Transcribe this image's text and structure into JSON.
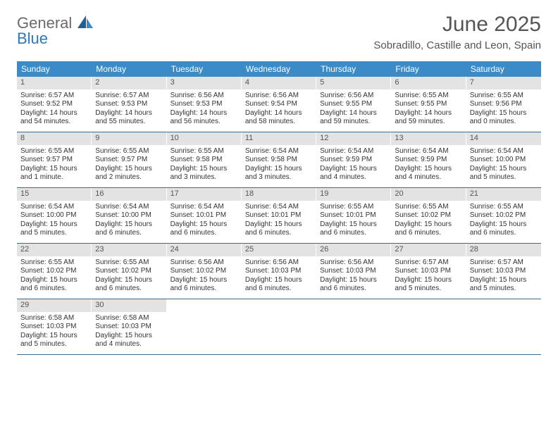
{
  "brand": {
    "line1": "General",
    "line2": "Blue"
  },
  "title": "June 2025",
  "location": "Sobradillo, Castille and Leon, Spain",
  "colors": {
    "header_bg": "#3b8bc9",
    "header_text": "#ffffff",
    "daynum_bg": "#e3e3e3",
    "rule": "#3b6a93",
    "brand_gray": "#6b6b6b",
    "brand_blue": "#2a7ac0"
  },
  "day_headers": [
    "Sunday",
    "Monday",
    "Tuesday",
    "Wednesday",
    "Thursday",
    "Friday",
    "Saturday"
  ],
  "weeks": [
    [
      {
        "n": "1",
        "sr": "Sunrise: 6:57 AM",
        "ss": "Sunset: 9:52 PM",
        "d1": "Daylight: 14 hours",
        "d2": "and 54 minutes."
      },
      {
        "n": "2",
        "sr": "Sunrise: 6:57 AM",
        "ss": "Sunset: 9:53 PM",
        "d1": "Daylight: 14 hours",
        "d2": "and 55 minutes."
      },
      {
        "n": "3",
        "sr": "Sunrise: 6:56 AM",
        "ss": "Sunset: 9:53 PM",
        "d1": "Daylight: 14 hours",
        "d2": "and 56 minutes."
      },
      {
        "n": "4",
        "sr": "Sunrise: 6:56 AM",
        "ss": "Sunset: 9:54 PM",
        "d1": "Daylight: 14 hours",
        "d2": "and 58 minutes."
      },
      {
        "n": "5",
        "sr": "Sunrise: 6:56 AM",
        "ss": "Sunset: 9:55 PM",
        "d1": "Daylight: 14 hours",
        "d2": "and 59 minutes."
      },
      {
        "n": "6",
        "sr": "Sunrise: 6:55 AM",
        "ss": "Sunset: 9:55 PM",
        "d1": "Daylight: 14 hours",
        "d2": "and 59 minutes."
      },
      {
        "n": "7",
        "sr": "Sunrise: 6:55 AM",
        "ss": "Sunset: 9:56 PM",
        "d1": "Daylight: 15 hours",
        "d2": "and 0 minutes."
      }
    ],
    [
      {
        "n": "8",
        "sr": "Sunrise: 6:55 AM",
        "ss": "Sunset: 9:57 PM",
        "d1": "Daylight: 15 hours",
        "d2": "and 1 minute."
      },
      {
        "n": "9",
        "sr": "Sunrise: 6:55 AM",
        "ss": "Sunset: 9:57 PM",
        "d1": "Daylight: 15 hours",
        "d2": "and 2 minutes."
      },
      {
        "n": "10",
        "sr": "Sunrise: 6:55 AM",
        "ss": "Sunset: 9:58 PM",
        "d1": "Daylight: 15 hours",
        "d2": "and 3 minutes."
      },
      {
        "n": "11",
        "sr": "Sunrise: 6:54 AM",
        "ss": "Sunset: 9:58 PM",
        "d1": "Daylight: 15 hours",
        "d2": "and 3 minutes."
      },
      {
        "n": "12",
        "sr": "Sunrise: 6:54 AM",
        "ss": "Sunset: 9:59 PM",
        "d1": "Daylight: 15 hours",
        "d2": "and 4 minutes."
      },
      {
        "n": "13",
        "sr": "Sunrise: 6:54 AM",
        "ss": "Sunset: 9:59 PM",
        "d1": "Daylight: 15 hours",
        "d2": "and 4 minutes."
      },
      {
        "n": "14",
        "sr": "Sunrise: 6:54 AM",
        "ss": "Sunset: 10:00 PM",
        "d1": "Daylight: 15 hours",
        "d2": "and 5 minutes."
      }
    ],
    [
      {
        "n": "15",
        "sr": "Sunrise: 6:54 AM",
        "ss": "Sunset: 10:00 PM",
        "d1": "Daylight: 15 hours",
        "d2": "and 5 minutes."
      },
      {
        "n": "16",
        "sr": "Sunrise: 6:54 AM",
        "ss": "Sunset: 10:00 PM",
        "d1": "Daylight: 15 hours",
        "d2": "and 6 minutes."
      },
      {
        "n": "17",
        "sr": "Sunrise: 6:54 AM",
        "ss": "Sunset: 10:01 PM",
        "d1": "Daylight: 15 hours",
        "d2": "and 6 minutes."
      },
      {
        "n": "18",
        "sr": "Sunrise: 6:54 AM",
        "ss": "Sunset: 10:01 PM",
        "d1": "Daylight: 15 hours",
        "d2": "and 6 minutes."
      },
      {
        "n": "19",
        "sr": "Sunrise: 6:55 AM",
        "ss": "Sunset: 10:01 PM",
        "d1": "Daylight: 15 hours",
        "d2": "and 6 minutes."
      },
      {
        "n": "20",
        "sr": "Sunrise: 6:55 AM",
        "ss": "Sunset: 10:02 PM",
        "d1": "Daylight: 15 hours",
        "d2": "and 6 minutes."
      },
      {
        "n": "21",
        "sr": "Sunrise: 6:55 AM",
        "ss": "Sunset: 10:02 PM",
        "d1": "Daylight: 15 hours",
        "d2": "and 6 minutes."
      }
    ],
    [
      {
        "n": "22",
        "sr": "Sunrise: 6:55 AM",
        "ss": "Sunset: 10:02 PM",
        "d1": "Daylight: 15 hours",
        "d2": "and 6 minutes."
      },
      {
        "n": "23",
        "sr": "Sunrise: 6:55 AM",
        "ss": "Sunset: 10:02 PM",
        "d1": "Daylight: 15 hours",
        "d2": "and 6 minutes."
      },
      {
        "n": "24",
        "sr": "Sunrise: 6:56 AM",
        "ss": "Sunset: 10:02 PM",
        "d1": "Daylight: 15 hours",
        "d2": "and 6 minutes."
      },
      {
        "n": "25",
        "sr": "Sunrise: 6:56 AM",
        "ss": "Sunset: 10:03 PM",
        "d1": "Daylight: 15 hours",
        "d2": "and 6 minutes."
      },
      {
        "n": "26",
        "sr": "Sunrise: 6:56 AM",
        "ss": "Sunset: 10:03 PM",
        "d1": "Daylight: 15 hours",
        "d2": "and 6 minutes."
      },
      {
        "n": "27",
        "sr": "Sunrise: 6:57 AM",
        "ss": "Sunset: 10:03 PM",
        "d1": "Daylight: 15 hours",
        "d2": "and 5 minutes."
      },
      {
        "n": "28",
        "sr": "Sunrise: 6:57 AM",
        "ss": "Sunset: 10:03 PM",
        "d1": "Daylight: 15 hours",
        "d2": "and 5 minutes."
      }
    ],
    [
      {
        "n": "29",
        "sr": "Sunrise: 6:58 AM",
        "ss": "Sunset: 10:03 PM",
        "d1": "Daylight: 15 hours",
        "d2": "and 5 minutes."
      },
      {
        "n": "30",
        "sr": "Sunrise: 6:58 AM",
        "ss": "Sunset: 10:03 PM",
        "d1": "Daylight: 15 hours",
        "d2": "and 4 minutes."
      },
      {
        "empty": true
      },
      {
        "empty": true
      },
      {
        "empty": true
      },
      {
        "empty": true
      },
      {
        "empty": true
      }
    ]
  ]
}
